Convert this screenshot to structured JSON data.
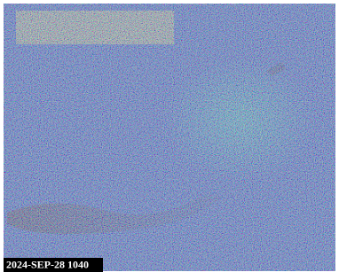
{
  "timestamp": "2024-SEP-28 1040"
}
